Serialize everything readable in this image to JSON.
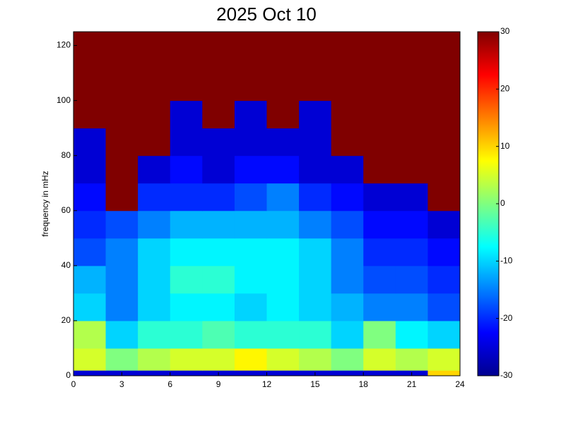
{
  "chart_data": {
    "type": "heatmap",
    "title": "2025 Oct 10",
    "y_label": "frequency in mHz",
    "colormap": "jet",
    "xbins": [
      0,
      2,
      4,
      6,
      8,
      10,
      12,
      14,
      16,
      18,
      20,
      22,
      24
    ],
    "ybins": [
      0,
      2,
      10,
      20,
      30,
      40,
      50,
      60,
      70,
      80,
      90,
      100,
      110,
      120,
      125
    ],
    "z": [
      [
        -25,
        -25,
        -25,
        -25,
        -25,
        -25,
        -25,
        -25,
        -25,
        -25,
        -25,
        10
      ],
      [
        5,
        0,
        3,
        5,
        5,
        8,
        5,
        3,
        0,
        5,
        3,
        5
      ],
      [
        3,
        -10,
        -5,
        -5,
        -3,
        -5,
        -5,
        -5,
        -10,
        0,
        -8,
        -10
      ],
      [
        -10,
        -15,
        -10,
        -8,
        -8,
        -10,
        -8,
        -10,
        -12,
        -15,
        -15,
        -18
      ],
      [
        -12,
        -15,
        -10,
        -5,
        -5,
        -8,
        -8,
        -10,
        -15,
        -18,
        -18,
        -20
      ],
      [
        -18,
        -15,
        -10,
        -8,
        -8,
        -8,
        -8,
        -10,
        -15,
        -20,
        -20,
        -22
      ],
      [
        -20,
        -18,
        -15,
        -12,
        -12,
        -12,
        -12,
        -15,
        -18,
        -22,
        -22,
        -25
      ],
      [
        -22,
        30,
        -20,
        -20,
        -20,
        -18,
        -15,
        -20,
        -22,
        -25,
        -25,
        30
      ],
      [
        -25,
        30,
        -25,
        -22,
        -25,
        -22,
        -22,
        -25,
        -25,
        30,
        30,
        30
      ],
      [
        -25,
        30,
        30,
        -25,
        -25,
        -25,
        -25,
        -25,
        30,
        30,
        30,
        30
      ],
      [
        30,
        30,
        30,
        -25,
        30,
        -25,
        30,
        -25,
        30,
        30,
        30,
        30
      ],
      [
        30,
        30,
        30,
        30,
        30,
        30,
        30,
        30,
        30,
        30,
        30,
        30
      ],
      [
        30,
        30,
        30,
        30,
        30,
        30,
        30,
        30,
        30,
        30,
        30,
        30
      ],
      [
        30,
        30,
        30,
        30,
        30,
        30,
        30,
        30,
        30,
        30,
        30,
        30
      ]
    ],
    "xlim": [
      0,
      24
    ],
    "xticks": [
      0,
      3,
      6,
      9,
      12,
      15,
      18,
      21,
      24
    ],
    "ylim": [
      0,
      125
    ],
    "yticks": [
      0,
      20,
      40,
      60,
      80,
      100,
      120
    ],
    "clim": [
      -30,
      30
    ],
    "cticks": [
      -30,
      -20,
      -10,
      0,
      10,
      20,
      30
    ]
  }
}
